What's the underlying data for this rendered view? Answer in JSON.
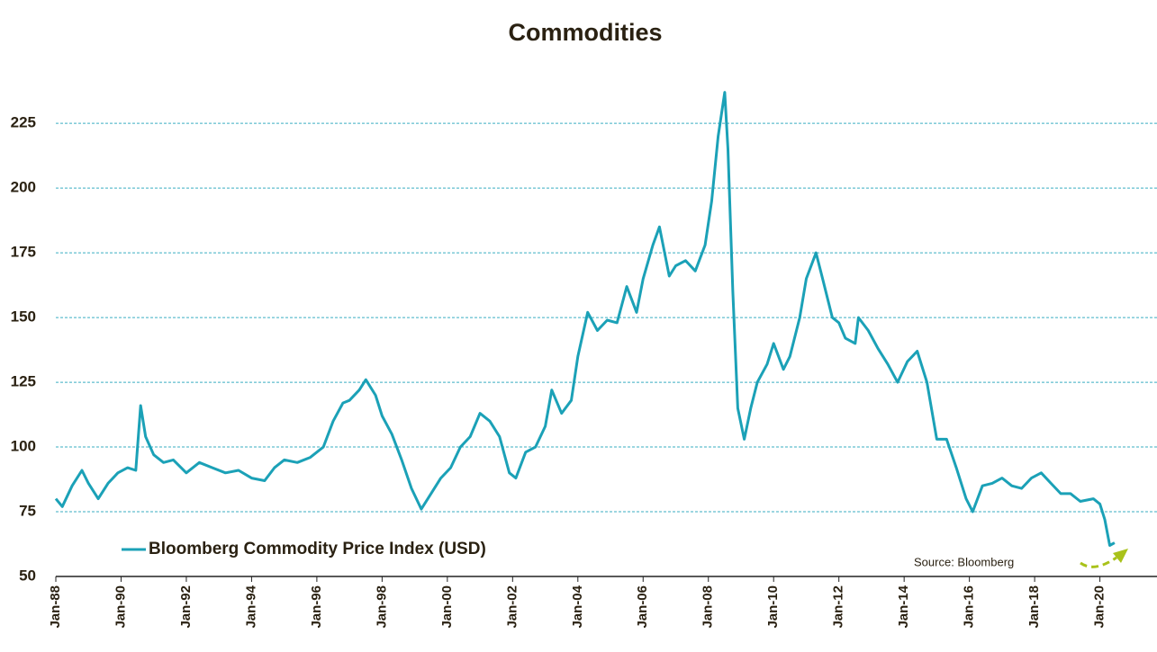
{
  "chart_data": {
    "type": "line",
    "title": "Commodities",
    "annotation": "Source: Bloomberg",
    "xlim": [
      1988,
      2021.75
    ],
    "xticks": [
      {
        "value": 1988,
        "label": "Jan-88"
      },
      {
        "value": 1990,
        "label": "Jan-90"
      },
      {
        "value": 1992,
        "label": "Jan-92"
      },
      {
        "value": 1994,
        "label": "Jan-94"
      },
      {
        "value": 1996,
        "label": "Jan-96"
      },
      {
        "value": 1998,
        "label": "Jan-98"
      },
      {
        "value": 2000,
        "label": "Jan-00"
      },
      {
        "value": 2002,
        "label": "Jan-02"
      },
      {
        "value": 2004,
        "label": "Jan-04"
      },
      {
        "value": 2006,
        "label": "Jan-06"
      },
      {
        "value": 2008,
        "label": "Jan-08"
      },
      {
        "value": 2010,
        "label": "Jan-10"
      },
      {
        "value": 2012,
        "label": "Jan-12"
      },
      {
        "value": 2014,
        "label": "Jan-14"
      },
      {
        "value": 2016,
        "label": "Jan-16"
      },
      {
        "value": 2018,
        "label": "Jan-18"
      },
      {
        "value": 2020,
        "label": "Jan-20"
      }
    ],
    "ylim": [
      50,
      240
    ],
    "yticks": [
      50,
      75,
      100,
      125,
      150,
      175,
      200,
      225
    ],
    "grid": true,
    "legend": "lower left",
    "x": [
      1988.0,
      1988.2,
      1988.5,
      1988.8,
      1989.0,
      1989.3,
      1989.6,
      1989.9,
      1990.2,
      1990.45,
      1990.6,
      1990.75,
      1991.0,
      1991.3,
      1991.6,
      1992.0,
      1992.4,
      1992.8,
      1993.2,
      1993.6,
      1994.0,
      1994.4,
      1994.7,
      1995.0,
      1995.4,
      1995.8,
      1996.2,
      1996.5,
      1996.8,
      1997.0,
      1997.3,
      1997.5,
      1997.8,
      1998.0,
      1998.3,
      1998.6,
      1998.9,
      1999.2,
      1999.5,
      1999.8,
      2000.1,
      2000.4,
      2000.7,
      2001.0,
      2001.3,
      2001.6,
      2001.9,
      2002.1,
      2002.4,
      2002.7,
      2003.0,
      2003.2,
      2003.5,
      2003.8,
      2004.0,
      2004.3,
      2004.6,
      2004.9,
      2005.2,
      2005.5,
      2005.8,
      2006.0,
      2006.3,
      2006.5,
      2006.8,
      2007.0,
      2007.3,
      2007.6,
      2007.9,
      2008.1,
      2008.3,
      2008.5,
      2008.6,
      2008.75,
      2008.9,
      2009.1,
      2009.3,
      2009.5,
      2009.8,
      2010.0,
      2010.3,
      2010.5,
      2010.8,
      2011.0,
      2011.3,
      2011.5,
      2011.8,
      2012.0,
      2012.2,
      2012.5,
      2012.6,
      2012.9,
      2013.2,
      2013.5,
      2013.8,
      2014.1,
      2014.4,
      2014.7,
      2015.0,
      2015.3,
      2015.6,
      2015.9,
      2016.1,
      2016.4,
      2016.7,
      2017.0,
      2017.3,
      2017.6,
      2017.9,
      2018.2,
      2018.5,
      2018.8,
      2019.1,
      2019.4,
      2019.8,
      2020.0,
      2020.15,
      2020.3,
      2020.45
    ],
    "series": [
      {
        "name": "Bloomberg Commodity Price Index (USD)",
        "color": "#1ba1b7",
        "values": [
          80,
          77,
          85,
          91,
          86,
          80,
          86,
          90,
          92,
          91,
          116,
          104,
          97,
          94,
          95,
          90,
          94,
          92,
          90,
          91,
          88,
          87,
          92,
          95,
          94,
          96,
          100,
          110,
          117,
          118,
          122,
          126,
          120,
          112,
          105,
          95,
          84,
          76,
          82,
          88,
          92,
          100,
          104,
          113,
          110,
          104,
          90,
          88,
          98,
          100,
          108,
          122,
          113,
          118,
          135,
          152,
          145,
          149,
          148,
          162,
          152,
          165,
          178,
          185,
          166,
          170,
          172,
          168,
          178,
          195,
          220,
          237,
          215,
          160,
          115,
          103,
          115,
          125,
          132,
          140,
          130,
          135,
          150,
          165,
          175,
          165,
          150,
          148,
          142,
          140,
          150,
          145,
          138,
          132,
          125,
          133,
          137,
          125,
          103,
          103,
          92,
          80,
          75,
          85,
          86,
          88,
          85,
          84,
          88,
          90,
          86,
          82,
          82,
          79,
          80,
          78,
          72,
          62,
          63
        ]
      }
    ]
  }
}
